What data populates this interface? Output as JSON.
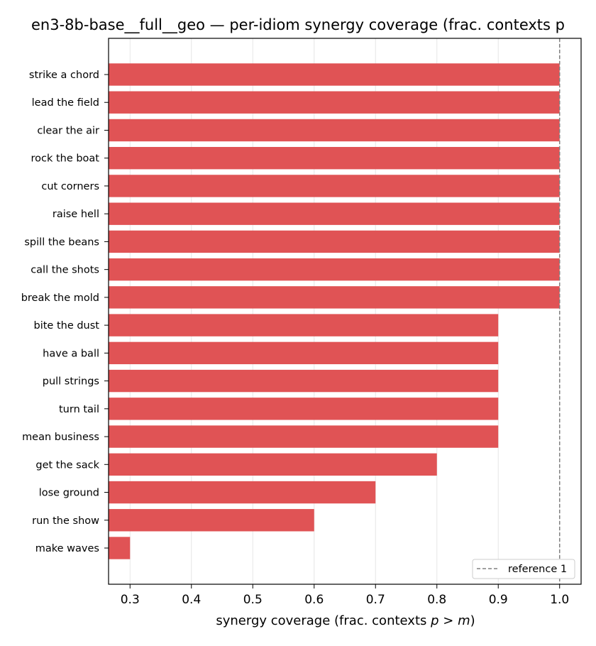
{
  "chart_data": {
    "type": "bar",
    "orientation": "horizontal",
    "title": "en3-8b-base__full__geo — per-idiom synergy coverage  (frac. contexts p",
    "xlabel_prefix": "synergy coverage  (frac. contexts ",
    "xlabel_math_p": "p",
    "xlabel_math_op": " > ",
    "xlabel_math_m": "m",
    "xlabel_suffix": ")",
    "ylabel": "",
    "xlim": [
      0.265,
      1.035
    ],
    "xticks": [
      "0.3",
      "0.4",
      "0.5",
      "0.6",
      "0.7",
      "0.8",
      "0.9",
      "1.0"
    ],
    "xtick_values": [
      0.3,
      0.4,
      0.5,
      0.6,
      0.7,
      0.8,
      0.9,
      1.0
    ],
    "grid": "x",
    "bar_color": "#e05355",
    "categories": [
      "strike a chord",
      "lead the field",
      "clear the air",
      "rock the boat",
      "cut corners",
      "raise hell",
      "spill the beans",
      "call the shots",
      "break the mold",
      "bite the dust",
      "have a ball",
      "pull strings",
      "turn tail",
      "mean business",
      "get the sack",
      "lose ground",
      "run the show",
      "make waves"
    ],
    "values": [
      1.0,
      1.0,
      1.0,
      1.0,
      1.0,
      1.0,
      1.0,
      1.0,
      1.0,
      0.9,
      0.9,
      0.9,
      0.9,
      0.9,
      0.8,
      0.7,
      0.6,
      0.3
    ],
    "reference_line": {
      "value": 1.0,
      "label": "reference 1",
      "color": "#808080",
      "style": "dashed"
    },
    "legend_placement": "lower-right"
  }
}
